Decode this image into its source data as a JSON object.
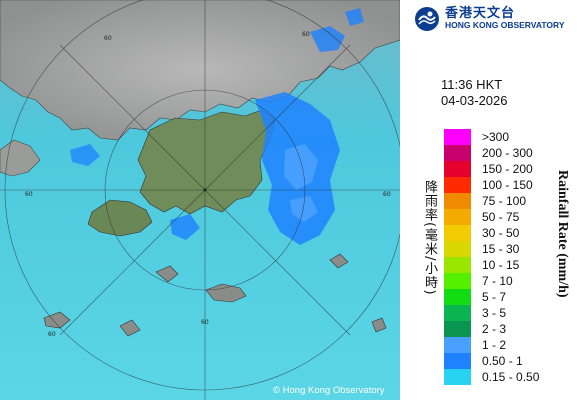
{
  "title": "",
  "logo": {
    "name_cn": "香港天文台",
    "name_en": "HONG KONG OBSERVATORY"
  },
  "timestamp": {
    "time": "11:36 HKT",
    "date": "04-03-2026"
  },
  "legend": {
    "label_cn": "降雨率(毫米/小時)",
    "label_en": "Rainfall Rate (mm/h)",
    "items": [
      {
        "label": ">300",
        "color": "#ff00ff"
      },
      {
        "label": "200 - 300",
        "color": "#c8006e"
      },
      {
        "label": "150 - 200",
        "color": "#e6002d"
      },
      {
        "label": "100 - 150",
        "color": "#ff2a00"
      },
      {
        "label": "75 - 100",
        "color": "#f08a00"
      },
      {
        "label": "50 - 75",
        "color": "#f5aa00"
      },
      {
        "label": "30 - 50",
        "color": "#f2cc00"
      },
      {
        "label": "15 - 30",
        "color": "#d8d800"
      },
      {
        "label": "10 - 15",
        "color": "#9be600"
      },
      {
        "label": "7 - 10",
        "color": "#55f000"
      },
      {
        "label": "5 - 7",
        "color": "#14dc14"
      },
      {
        "label": "3 - 5",
        "color": "#0ab450"
      },
      {
        "label": "2 - 3",
        "color": "#0a9650"
      },
      {
        "label": "1 - 2",
        "color": "#4aa0ff"
      },
      {
        "label": "0.50 - 1",
        "color": "#1e82ff"
      },
      {
        "label": "0.15 - 0.50",
        "color": "#28d2f0"
      }
    ]
  },
  "range_rings": {
    "labels": [
      "60",
      "60",
      "60",
      "60",
      "60",
      "60"
    ]
  },
  "copyright": "© Hong Kong Observatory"
}
